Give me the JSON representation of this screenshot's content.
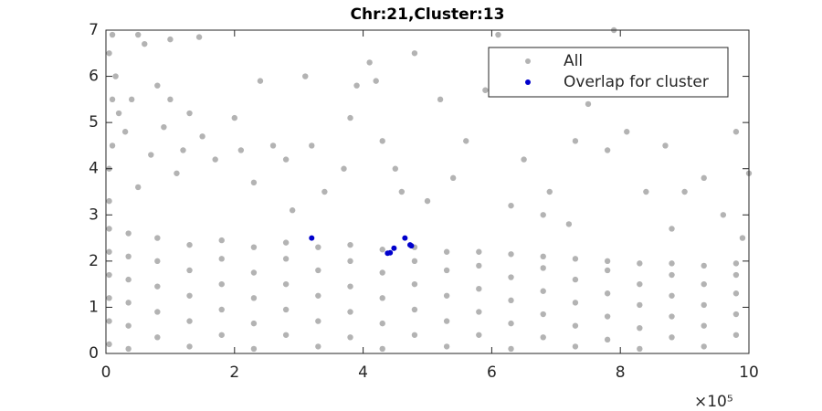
{
  "chart_data": {
    "type": "scatter",
    "title": "Chr:21,Cluster:13",
    "x_multiplier": "×10⁵",
    "xlim": [
      0,
      10
    ],
    "xticks": [
      0,
      2,
      4,
      6,
      8,
      10
    ],
    "ylim": [
      0,
      7
    ],
    "yticks": [
      0,
      1,
      2,
      3,
      4,
      5,
      6,
      7
    ],
    "grid": false,
    "legend": "top-right",
    "series": [
      {
        "name": "All",
        "color": "#b3b3b3",
        "x": [
          0.05,
          0.05,
          0.05,
          0.05,
          0.05,
          0.05,
          0.05,
          0.05,
          0.35,
          0.35,
          0.35,
          0.35,
          0.35,
          0.35,
          0.8,
          0.8,
          0.8,
          0.8,
          0.8,
          1.3,
          1.3,
          1.3,
          1.3,
          1.3,
          1.8,
          1.8,
          1.8,
          1.8,
          1.8,
          2.3,
          2.3,
          2.3,
          2.3,
          2.3,
          2.8,
          2.8,
          2.8,
          2.8,
          2.8,
          3.3,
          3.3,
          3.3,
          3.3,
          3.3,
          3.8,
          3.8,
          3.8,
          3.8,
          3.8,
          4.3,
          4.3,
          4.3,
          4.3,
          4.3,
          4.8,
          4.8,
          4.8,
          4.8,
          4.8,
          5.3,
          5.3,
          5.3,
          5.3,
          5.3,
          5.8,
          5.8,
          5.8,
          5.8,
          5.8,
          6.3,
          6.3,
          6.3,
          6.3,
          6.3,
          6.8,
          6.8,
          6.8,
          6.8,
          6.8,
          7.3,
          7.3,
          7.3,
          7.3,
          7.3,
          7.8,
          7.8,
          7.8,
          7.8,
          7.8,
          8.3,
          8.3,
          8.3,
          8.3,
          8.3,
          8.8,
          8.8,
          8.8,
          8.8,
          8.8,
          9.3,
          9.3,
          9.3,
          9.3,
          9.3,
          9.8,
          9.8,
          9.8,
          9.8,
          9.8,
          0.1,
          0.05,
          0.15,
          0.1,
          0.2,
          0.3,
          0.1,
          0.5,
          1.0,
          1.45,
          0.6,
          0.8,
          1.0,
          0.4,
          1.3,
          2.0,
          0.9,
          1.5,
          0.7,
          1.2,
          1.7,
          2.1,
          2.6,
          3.1,
          2.4,
          2.8,
          3.2,
          3.9,
          4.1,
          4.2,
          3.8,
          4.3,
          3.7,
          4.8,
          4.5,
          5.2,
          5.6,
          5.9,
          6.1,
          5.4,
          6.5,
          7.5,
          7.8,
          8.1,
          8.7,
          7.9,
          9.3,
          9.8,
          10,
          6.9,
          7.3,
          6.3,
          8.4,
          9.0,
          9.6,
          5.0,
          3.4,
          2.3,
          1.1,
          0.5,
          4.6,
          6.8,
          7.2,
          8.8,
          9.9,
          2.9
        ],
        "values": [
          0.2,
          0.7,
          1.2,
          1.7,
          2.2,
          2.7,
          3.3,
          4.0,
          0.1,
          0.6,
          1.1,
          1.6,
          2.1,
          2.6,
          0.35,
          0.9,
          1.45,
          2.0,
          2.5,
          0.15,
          0.7,
          1.25,
          1.8,
          2.35,
          0.4,
          0.95,
          1.5,
          2.05,
          2.45,
          0.1,
          0.65,
          1.2,
          1.75,
          2.3,
          0.4,
          0.95,
          1.5,
          2.05,
          2.4,
          0.15,
          0.7,
          1.25,
          1.8,
          2.3,
          0.35,
          0.9,
          1.45,
          2.0,
          2.35,
          0.1,
          0.65,
          1.2,
          1.75,
          2.25,
          0.4,
          0.95,
          1.5,
          2.0,
          2.3,
          0.15,
          0.7,
          1.25,
          1.8,
          2.2,
          0.4,
          0.9,
          1.4,
          1.9,
          2.2,
          0.1,
          0.65,
          1.15,
          1.65,
          2.15,
          0.35,
          0.85,
          1.35,
          1.85,
          2.1,
          0.15,
          0.6,
          1.1,
          1.6,
          2.05,
          0.3,
          0.8,
          1.3,
          1.8,
          2.0,
          0.1,
          0.55,
          1.05,
          1.5,
          1.95,
          0.35,
          0.8,
          1.25,
          1.7,
          1.95,
          0.15,
          0.6,
          1.05,
          1.5,
          1.9,
          0.4,
          0.85,
          1.3,
          1.7,
          1.95,
          6.9,
          6.5,
          6.0,
          5.5,
          5.2,
          4.8,
          4.5,
          6.9,
          6.8,
          6.85,
          6.7,
          5.8,
          5.5,
          5.5,
          5.2,
          5.1,
          4.9,
          4.7,
          4.3,
          4.4,
          4.2,
          4.4,
          4.5,
          6.0,
          5.9,
          4.2,
          4.5,
          5.8,
          6.3,
          5.9,
          5.1,
          4.6,
          4.0,
          6.5,
          4.0,
          5.5,
          4.6,
          5.7,
          6.9,
          3.8,
          4.2,
          5.4,
          4.4,
          4.8,
          4.5,
          7.0,
          3.8,
          4.8,
          3.9,
          3.5,
          4.6,
          3.2,
          3.5,
          3.5,
          3.0,
          3.3,
          3.5,
          3.7,
          3.9,
          3.6,
          3.5,
          3.0,
          2.8,
          2.7,
          2.5,
          3.1
        ]
      },
      {
        "name": "Overlap for cluster",
        "color": "#0000cc",
        "x": [
          3.2,
          4.38,
          4.42,
          4.48,
          4.65,
          4.73,
          4.75
        ],
        "values": [
          2.5,
          2.17,
          2.18,
          2.28,
          2.5,
          2.35,
          2.33
        ]
      }
    ]
  }
}
